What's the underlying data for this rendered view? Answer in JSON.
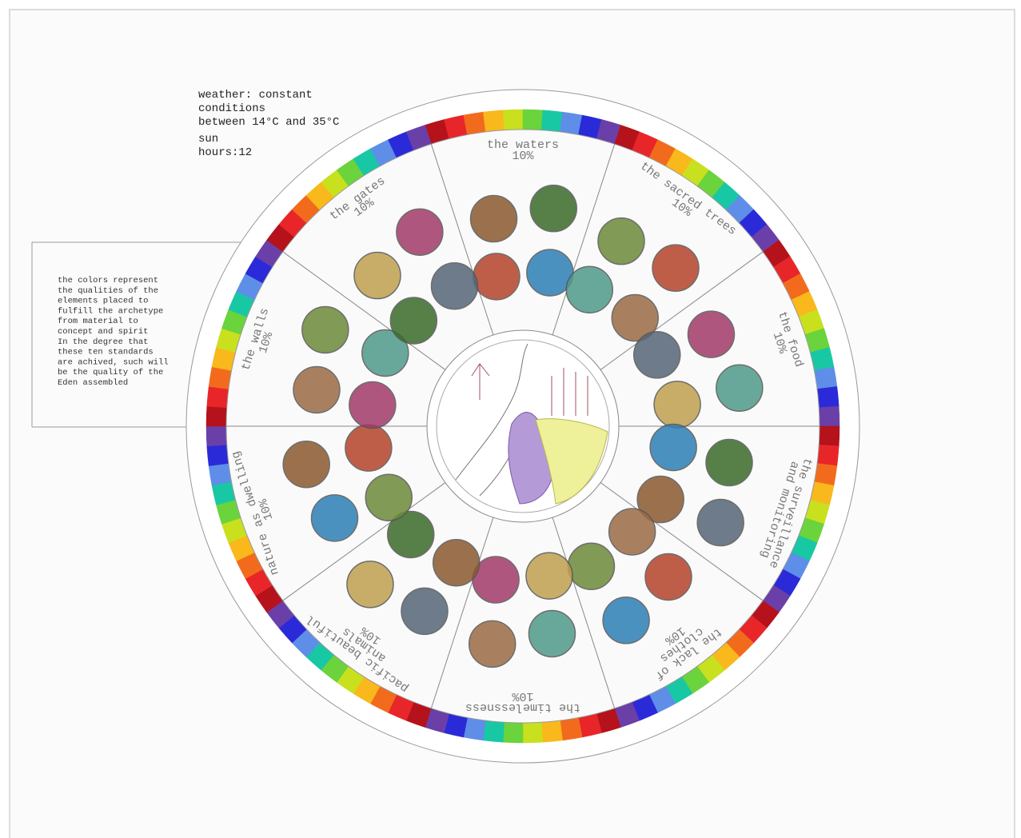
{
  "weather": {
    "lines": [
      "weather: constant",
      "conditions",
      "between 14°C and 35°C"
    ]
  },
  "sun": {
    "lines": [
      "sun",
      "hours:12"
    ]
  },
  "note": {
    "lines": [
      "the colors represent",
      "the qualities of the",
      "elements placed to",
      "fulfill the archetype",
      "from material to",
      "concept and spirit",
      "In the degree that",
      "these ten standards",
      "are achived, such will",
      "be the quality of the",
      "Eden assembled"
    ]
  },
  "sectors": [
    {
      "lines": [
        "the waters",
        "10%"
      ]
    },
    {
      "lines": [
        "the sacred trees",
        "10%"
      ]
    },
    {
      "lines": [
        "the food",
        "10%"
      ]
    },
    {
      "lines": [
        "the surveillance",
        "and monitoring"
      ]
    },
    {
      "lines": [
        "the lack of",
        "clothes",
        "10%"
      ]
    },
    {
      "lines": [
        "the timelessness",
        "10%"
      ]
    },
    {
      "lines": [
        "pacific beautiful",
        "animals",
        "10%"
      ]
    },
    {
      "lines": [
        "nature as dwelling",
        "10%"
      ]
    },
    {
      "lines": [
        "the walls",
        "10%"
      ]
    },
    {
      "lines": [
        "the gates",
        "10%"
      ]
    }
  ]
}
